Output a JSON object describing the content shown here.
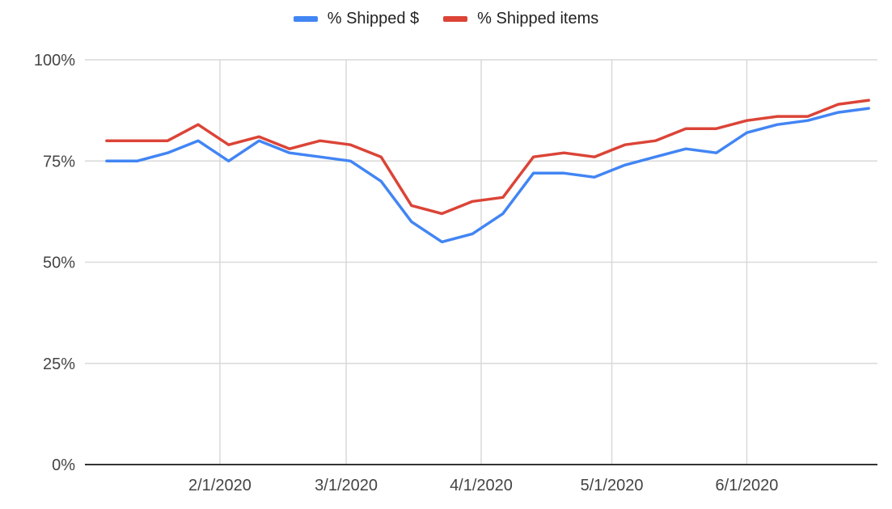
{
  "chart_data": {
    "type": "line",
    "legend_position": "top",
    "grid": true,
    "x_tick_labels": [
      "2/1/2020",
      "3/1/2020",
      "4/1/2020",
      "5/1/2020",
      "6/1/2020"
    ],
    "x_ticks": [
      "2020-02-01",
      "2020-03-01",
      "2020-04-01",
      "2020-05-01",
      "2020-06-01"
    ],
    "y_tick_labels": [
      "0%",
      "25%",
      "50%",
      "75%",
      "100%"
    ],
    "ylim": [
      0,
      100
    ],
    "x": [
      "2020-01-06",
      "2020-01-13",
      "2020-01-20",
      "2020-01-27",
      "2020-02-03",
      "2020-02-10",
      "2020-02-17",
      "2020-02-24",
      "2020-03-02",
      "2020-03-09",
      "2020-03-16",
      "2020-03-23",
      "2020-03-30",
      "2020-04-06",
      "2020-04-13",
      "2020-04-20",
      "2020-04-27",
      "2020-05-04",
      "2020-05-11",
      "2020-05-18",
      "2020-05-25",
      "2020-06-01",
      "2020-06-08",
      "2020-06-15",
      "2020-06-22",
      "2020-06-29"
    ],
    "series": [
      {
        "name": "% Shipped $",
        "color": "#4285f4",
        "values": [
          75,
          75,
          77,
          80,
          75,
          80,
          77,
          76,
          75,
          70,
          60,
          55,
          57,
          62,
          72,
          72,
          71,
          74,
          76,
          78,
          77,
          82,
          84,
          85,
          87,
          88
        ]
      },
      {
        "name": "% Shipped items",
        "color": "#db4437",
        "values": [
          80,
          80,
          80,
          84,
          79,
          81,
          78,
          80,
          79,
          76,
          64,
          62,
          65,
          66,
          76,
          77,
          76,
          79,
          80,
          83,
          83,
          85,
          86,
          86,
          89,
          90
        ]
      }
    ]
  }
}
